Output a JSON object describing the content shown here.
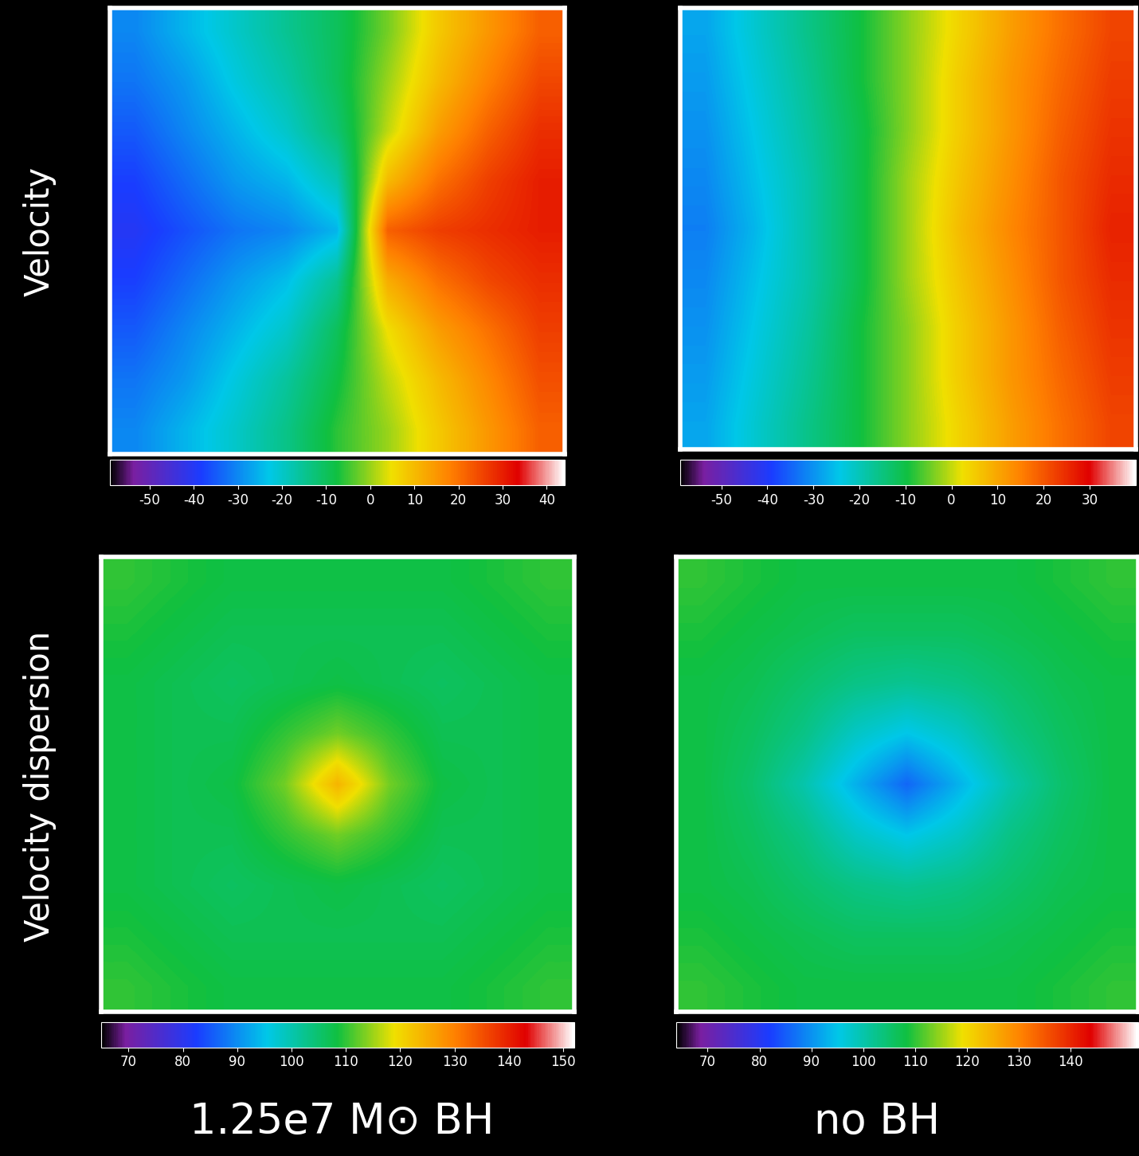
{
  "row_labels": [
    "Velocity",
    "Velocity dispersion"
  ],
  "column_labels": [
    "1.25e7 M⊙ BH",
    "no BH"
  ],
  "chart_data": [
    {
      "type": "heatmap",
      "tick_labels": false,
      "cells": [
        [
          -30,
          -25,
          -20,
          -15,
          -10,
          -2,
          8,
          15,
          22
        ],
        [
          -32,
          -28,
          -22,
          -17,
          -10,
          0,
          10,
          18,
          25
        ],
        [
          -35,
          -30,
          -25,
          -20,
          -12,
          2,
          14,
          22,
          28
        ],
        [
          -38,
          -33,
          -28,
          -25,
          -18,
          10,
          20,
          26,
          30
        ],
        [
          -40,
          -36,
          -32,
          -30,
          -25,
          22,
          26,
          28,
          30
        ],
        [
          -38,
          -33,
          -28,
          -24,
          -15,
          12,
          20,
          25,
          28
        ],
        [
          -35,
          -30,
          -25,
          -20,
          -10,
          5,
          14,
          20,
          26
        ],
        [
          -32,
          -28,
          -22,
          -16,
          -8,
          2,
          10,
          17,
          24
        ],
        [
          -30,
          -25,
          -20,
          -14,
          -6,
          0,
          8,
          15,
          22
        ]
      ],
      "colorbar_range": [
        -59,
        44
      ],
      "colorbar_ticks": [
        -50,
        -40,
        -30,
        -20,
        -10,
        0,
        10,
        20,
        30,
        40
      ]
    },
    {
      "type": "heatmap",
      "tick_labels": false,
      "cells": [
        [
          -28,
          -22,
          -16,
          -10,
          -3,
          4,
          11,
          17,
          22
        ],
        [
          -29,
          -23,
          -17,
          -10,
          -3,
          5,
          12,
          18,
          23
        ],
        [
          -30,
          -24,
          -18,
          -11,
          -3,
          5,
          12,
          19,
          24
        ],
        [
          -31,
          -25,
          -19,
          -11,
          -2,
          6,
          13,
          20,
          25
        ],
        [
          -32,
          -26,
          -19,
          -11,
          -2,
          7,
          14,
          20,
          26
        ],
        [
          -31,
          -25,
          -19,
          -11,
          -2,
          6,
          13,
          20,
          25
        ],
        [
          -30,
          -24,
          -18,
          -10,
          -3,
          5,
          12,
          19,
          24
        ],
        [
          -29,
          -23,
          -17,
          -10,
          -3,
          5,
          12,
          18,
          23
        ],
        [
          -28,
          -22,
          -16,
          -10,
          -3,
          4,
          11,
          17,
          22
        ]
      ],
      "colorbar_range": [
        -59,
        40
      ],
      "colorbar_ticks": [
        -50,
        -40,
        -30,
        -20,
        -10,
        0,
        10,
        20,
        30
      ]
    },
    {
      "type": "heatmap",
      "tick_labels": false,
      "cells": [
        [
          110,
          109,
          108,
          108,
          108,
          108,
          108,
          109,
          110
        ],
        [
          109,
          108,
          107,
          107,
          107,
          107,
          107,
          108,
          109
        ],
        [
          108,
          107,
          106,
          107,
          108,
          107,
          106,
          107,
          108
        ],
        [
          108,
          107,
          107,
          110,
          113,
          110,
          107,
          107,
          108
        ],
        [
          108,
          107,
          108,
          113,
          124,
          113,
          108,
          107,
          108
        ],
        [
          108,
          107,
          107,
          110,
          113,
          110,
          107,
          107,
          108
        ],
        [
          108,
          107,
          106,
          107,
          108,
          107,
          106,
          107,
          108
        ],
        [
          109,
          108,
          107,
          107,
          107,
          107,
          107,
          108,
          109
        ],
        [
          110,
          109,
          108,
          108,
          108,
          108,
          108,
          109,
          110
        ]
      ],
      "colorbar_range": [
        65,
        152
      ],
      "colorbar_ticks": [
        70,
        80,
        90,
        100,
        110,
        120,
        130,
        140,
        150
      ]
    },
    {
      "type": "heatmap",
      "tick_labels": false,
      "cells": [
        [
          110,
          109,
          108,
          108,
          108,
          108,
          108,
          109,
          110
        ],
        [
          109,
          108,
          107,
          106,
          106,
          106,
          107,
          108,
          109
        ],
        [
          108,
          107,
          105,
          103,
          102,
          103,
          105,
          107,
          108
        ],
        [
          108,
          106,
          103,
          98,
          95,
          98,
          103,
          106,
          108
        ],
        [
          108,
          105,
          100,
          93,
          86,
          93,
          100,
          105,
          108
        ],
        [
          108,
          106,
          103,
          98,
          95,
          98,
          103,
          106,
          108
        ],
        [
          108,
          107,
          105,
          103,
          102,
          103,
          105,
          107,
          108
        ],
        [
          109,
          108,
          107,
          106,
          106,
          106,
          107,
          108,
          109
        ],
        [
          110,
          109,
          108,
          108,
          108,
          108,
          108,
          109,
          110
        ]
      ],
      "colorbar_range": [
        64,
        153
      ],
      "colorbar_ticks": [
        70,
        80,
        90,
        100,
        110,
        120,
        130,
        140
      ]
    }
  ]
}
